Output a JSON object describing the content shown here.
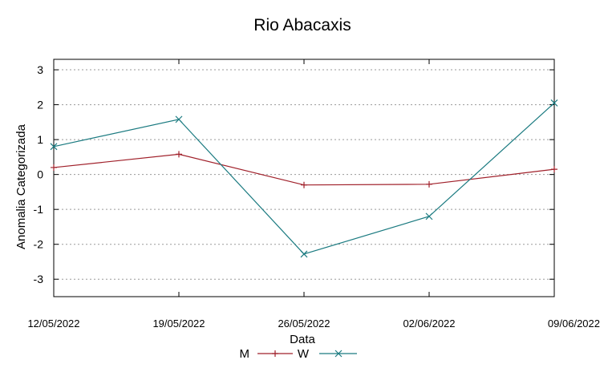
{
  "chart_data": {
    "type": "line",
    "title": "Rio Abacaxis",
    "xlabel": "Data",
    "ylabel": "Anomalia Categorizada",
    "categories": [
      "12/05/2022",
      "19/05/2022",
      "26/05/2022",
      "02/06/2022",
      "09/06/2022"
    ],
    "yticks": [
      "3",
      "2",
      "1",
      "0",
      "-1",
      "-2",
      "-3"
    ],
    "ylim": [
      -3.5,
      3.3
    ],
    "grid": true,
    "legend_position": "bottom-center",
    "series": [
      {
        "name": "M",
        "values": [
          0.2,
          0.58,
          -0.3,
          -0.28,
          0.15
        ],
        "color": "#a0202a",
        "marker": "plus"
      },
      {
        "name": "W",
        "values": [
          0.8,
          1.58,
          -2.28,
          -1.2,
          2.05
        ],
        "color": "#1a7a80",
        "marker": "cross"
      }
    ]
  }
}
